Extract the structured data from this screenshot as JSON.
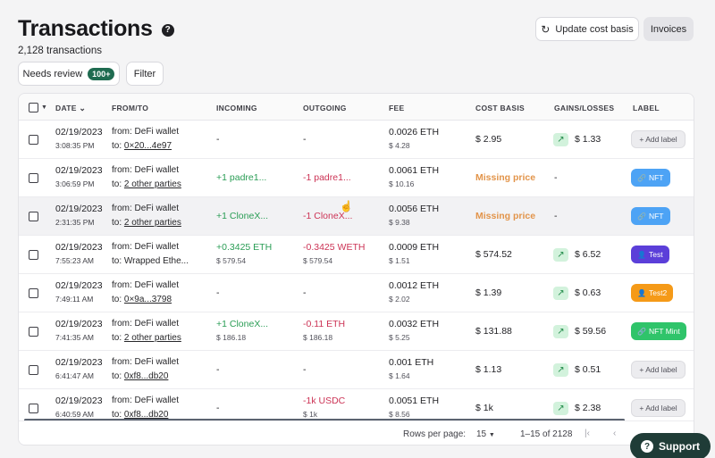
{
  "page": {
    "title": "Transactions",
    "subtitle": "2,128 transactions",
    "update_cost_basis": "Update cost basis",
    "invoices": "Invoices",
    "needs_review": "Needs review",
    "needs_review_count": "100+",
    "filter": "Filter"
  },
  "table": {
    "headers": {
      "date": "DATE",
      "from_to": "FROM/TO",
      "incoming": "INCOMING",
      "outgoing": "OUTGOING",
      "fee": "FEE",
      "cost_basis": "COST BASIS",
      "gains_losses": "GAINS/LOSSES",
      "label": "LABEL"
    },
    "rows": [
      {
        "date": "02/19/2023",
        "time": "3:08:35 PM",
        "from": "from: DeFi wallet",
        "to_prefix": "to: ",
        "to": "0×20...4e97",
        "in1": "-",
        "in2": "",
        "out1": "-",
        "out2": "",
        "fee1": "0.0026 ETH",
        "fee2": "$ 4.28",
        "cost": "$ 2.95",
        "gain": "$ 1.33",
        "label": "+ Add label"
      },
      {
        "date": "02/19/2023",
        "time": "3:06:59 PM",
        "from": "from: DeFi wallet",
        "to_prefix": "to: ",
        "to": "2 other parties",
        "in1": "+1 padre1...",
        "in2": "",
        "out1": "-1 padre1...",
        "out2": "",
        "fee1": "0.0061 ETH",
        "fee2": "$ 10.16",
        "cost": "Missing price",
        "gain": "-",
        "label": "NFT"
      },
      {
        "date": "02/19/2023",
        "time": "2:31:35 PM",
        "from": "from: DeFi wallet",
        "to_prefix": "to: ",
        "to": "2 other parties",
        "in1": "+1 CloneX...",
        "in2": "",
        "out1": "-1 CloneX...",
        "out2": "",
        "fee1": "0.0056 ETH",
        "fee2": "$ 9.38",
        "cost": "Missing price",
        "gain": "-",
        "label": "NFT"
      },
      {
        "date": "02/19/2023",
        "time": "7:55:23 AM",
        "from": "from: DeFi wallet",
        "to_prefix": "to: ",
        "to": "Wrapped Ethe...",
        "in1": "+0.3425 ETH",
        "in2": "$ 579.54",
        "out1": "-0.3425 WETH",
        "out2": "$ 579.54",
        "fee1": "0.0009 ETH",
        "fee2": "$ 1.51",
        "cost": "$ 574.52",
        "gain": "$ 6.52",
        "label": "Test"
      },
      {
        "date": "02/19/2023",
        "time": "7:49:11 AM",
        "from": "from: DeFi wallet",
        "to_prefix": "to: ",
        "to": "0×9a...3798",
        "in1": "-",
        "in2": "",
        "out1": "-",
        "out2": "",
        "fee1": "0.0012 ETH",
        "fee2": "$ 2.02",
        "cost": "$ 1.39",
        "gain": "$ 0.63",
        "label": "Test2"
      },
      {
        "date": "02/19/2023",
        "time": "7:41:35 AM",
        "from": "from: DeFi wallet",
        "to_prefix": "to: ",
        "to": "2 other parties",
        "in1": "+1 CloneX...",
        "in2": "$ 186.18",
        "out1": "-0.11 ETH",
        "out2": "$ 186.18",
        "fee1": "0.0032 ETH",
        "fee2": "$ 5.25",
        "cost": "$ 131.88",
        "gain": "$ 59.56",
        "label": "NFT Mint"
      },
      {
        "date": "02/19/2023",
        "time": "6:41:47 AM",
        "from": "from: DeFi wallet",
        "to_prefix": "to: ",
        "to": "0xf8...db20",
        "in1": "-",
        "in2": "",
        "out1": "-",
        "out2": "",
        "fee1": "0.001 ETH",
        "fee2": "$ 1.64",
        "cost": "$ 1.13",
        "gain": "$ 0.51",
        "label": "+ Add label"
      },
      {
        "date": "02/19/2023",
        "time": "6:40:59 AM",
        "from": "from: DeFi wallet",
        "to_prefix": "to: ",
        "to": "0xf8...db20",
        "in1": "-",
        "in2": "",
        "out1": "-1k USDC",
        "out2": "$ 1k",
        "fee1": "0.0051 ETH",
        "fee2": "$ 8.56",
        "cost": "$ 1k",
        "gain": "$ 2.38",
        "label": "+ Add label"
      }
    ],
    "footer": {
      "rows_per_page_label": "Rows per page:",
      "rows_per_page_value": "15",
      "range": "1–15 of 2128"
    }
  },
  "support": "Support",
  "colors": {
    "nft": "#4da3f5",
    "test": "#5b3fd9",
    "test2": "#f59a18",
    "nft_mint": "#2fc46a"
  }
}
